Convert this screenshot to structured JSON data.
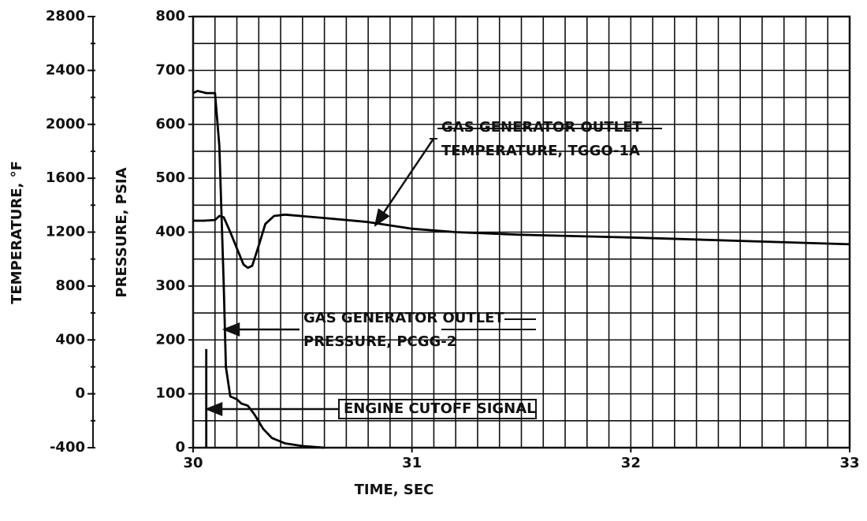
{
  "chart_data": {
    "type": "line",
    "xlabel": "TIME, SEC",
    "ylabel": "PRESSURE, PSIA",
    "y2label": "TEMPERATURE, °F",
    "xlim": [
      30,
      33
    ],
    "xticks": [
      30,
      31,
      32,
      33
    ],
    "ylim": [
      0,
      800
    ],
    "yticks": [
      0,
      100,
      200,
      300,
      400,
      500,
      600,
      700,
      800
    ],
    "y2lim": [
      -400,
      2800
    ],
    "y2ticks": [
      -400,
      0,
      400,
      800,
      1200,
      1600,
      2000,
      2400,
      2800
    ],
    "grid": true,
    "xgrid_step": 0.1,
    "ygrid_step": 50,
    "y2minor_step": 200,
    "series": [
      {
        "name": [
          "GAS GENERATOR OUTLET",
          "TEMPERATURE, TGGO-1A"
        ],
        "color": "#000000",
        "axis": "y2",
        "x": [
          30,
          30.05,
          30.1,
          30.12,
          30.14,
          30.17,
          30.2,
          30.23,
          30.25,
          30.27,
          30.3,
          30.33,
          30.37,
          30.42,
          30.6,
          30.8,
          31,
          31.2,
          31.5,
          32,
          32.5,
          33
        ],
        "values": [
          1285,
          1285,
          1290,
          1320,
          1310,
          1200,
          1080,
          960,
          935,
          950,
          1100,
          1260,
          1320,
          1330,
          1305,
          1275,
          1225,
          1200,
          1180,
          1160,
          1135,
          1110
        ]
      },
      {
        "name": [
          "GAS GENERATOR OUTLET",
          "PRESSURE, PCGG-2"
        ],
        "color": "#000000",
        "x": [
          30,
          30.02,
          30.04,
          30.06,
          30.1,
          30.12,
          30.14,
          30.15,
          30.17,
          30.2,
          30.22,
          30.25,
          30.28,
          30.32,
          30.36,
          30.42,
          30.5,
          30.6
        ],
        "values": [
          658,
          662,
          660,
          658,
          658,
          560,
          300,
          150,
          95,
          90,
          82,
          78,
          62,
          35,
          18,
          8,
          3,
          0
        ]
      },
      {
        "name": [
          "ENGINE CUTOFF SIGNAL"
        ],
        "color": "#000000",
        "x": [
          30.06,
          30.06
        ],
        "values": [
          0,
          183
        ]
      }
    ]
  }
}
